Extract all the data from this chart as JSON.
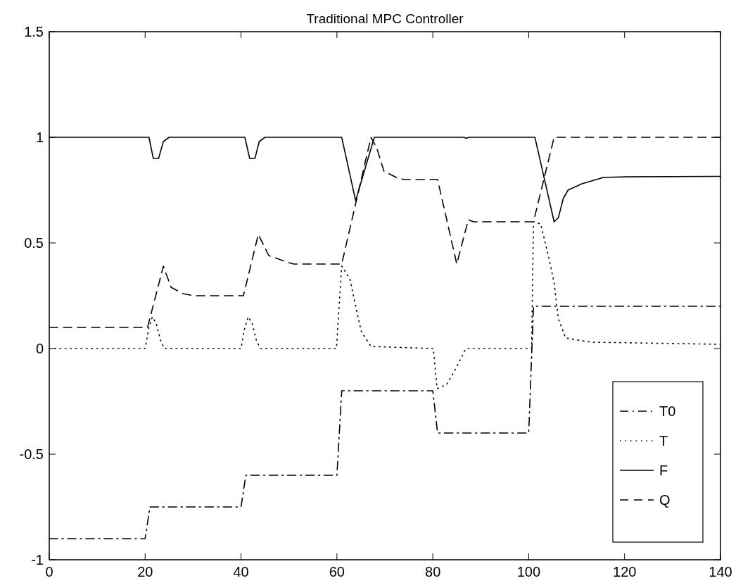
{
  "chart_data": {
    "type": "line",
    "title": "Traditional MPC Controller",
    "xlim": [
      0,
      140
    ],
    "xticks": [
      0,
      20,
      40,
      60,
      80,
      100,
      120,
      140
    ],
    "ylim": [
      -1,
      1.5
    ],
    "yticks": [
      -1,
      -0.5,
      0,
      0.5,
      1,
      1.5
    ],
    "grid": false,
    "legend": "bottom right",
    "series": [
      {
        "name": "T0",
        "color": "#000000",
        "line_style": "dashdot",
        "x": [
          0,
          20,
          21,
          40,
          41,
          60,
          61,
          80,
          81,
          100,
          101,
          140
        ],
        "values": [
          -0.9,
          -0.9,
          -0.75,
          -0.75,
          -0.6,
          -0.6,
          -0.2,
          -0.2,
          -0.4,
          -0.4,
          0.2,
          0.2
        ]
      },
      {
        "name": "T",
        "color": "#000000",
        "line_style": "dotted",
        "x": [
          0,
          20,
          20.8,
          21.5,
          22.3,
          23.2,
          24,
          40,
          40.8,
          41.5,
          42.3,
          43.2,
          44,
          59.9,
          61,
          62.7,
          64.2,
          65.1,
          67.1,
          80.1,
          80.9,
          82.9,
          84.9,
          86.9,
          100.6,
          101,
          102.5,
          104.3,
          105.3,
          106.2,
          107.7,
          113,
          140
        ],
        "values": [
          0,
          0,
          0.1,
          0.15,
          0.12,
          0.04,
          0,
          0,
          0.1,
          0.15,
          0.12,
          0.04,
          0,
          0,
          0.39,
          0.33,
          0.17,
          0.08,
          0.01,
          0,
          -0.19,
          -0.17,
          -0.09,
          0,
          0,
          0.6,
          0.59,
          0.42,
          0.31,
          0.14,
          0.05,
          0.03,
          0.02
        ]
      },
      {
        "name": "F",
        "color": "#000000",
        "line_style": "solid",
        "x": [
          0,
          20.8,
          21.7,
          22.8,
          23.8,
          25,
          40.8,
          41.8,
          42.9,
          43.8,
          45,
          61,
          63.9,
          67.8,
          86.5,
          87,
          87.5,
          101.3,
          105.3,
          106.2,
          107.2,
          108.2,
          111.1,
          115.6,
          120.4,
          140
        ],
        "values": [
          1,
          1,
          0.9,
          0.9,
          0.98,
          1,
          1,
          0.9,
          0.9,
          0.98,
          1,
          1,
          0.7,
          1,
          1,
          0.995,
          1,
          1,
          0.6,
          0.62,
          0.71,
          0.75,
          0.78,
          0.81,
          0.813,
          0.815
        ]
      },
      {
        "name": "Q",
        "color": "#000000",
        "line_style": "dashed",
        "x": [
          0,
          20.5,
          23.8,
          25.4,
          27.9,
          30,
          40.5,
          43.6,
          45.8,
          49.5,
          51,
          61,
          67.1,
          68.3,
          69.8,
          72.4,
          74,
          81,
          85,
          87.4,
          88.5,
          101,
          105.3,
          140
        ],
        "values": [
          0.1,
          0.1,
          0.39,
          0.29,
          0.26,
          0.25,
          0.25,
          0.54,
          0.44,
          0.41,
          0.4,
          0.4,
          1,
          0.95,
          0.84,
          0.81,
          0.8,
          0.8,
          0.4,
          0.61,
          0.6,
          0.6,
          1,
          1
        ]
      }
    ]
  }
}
